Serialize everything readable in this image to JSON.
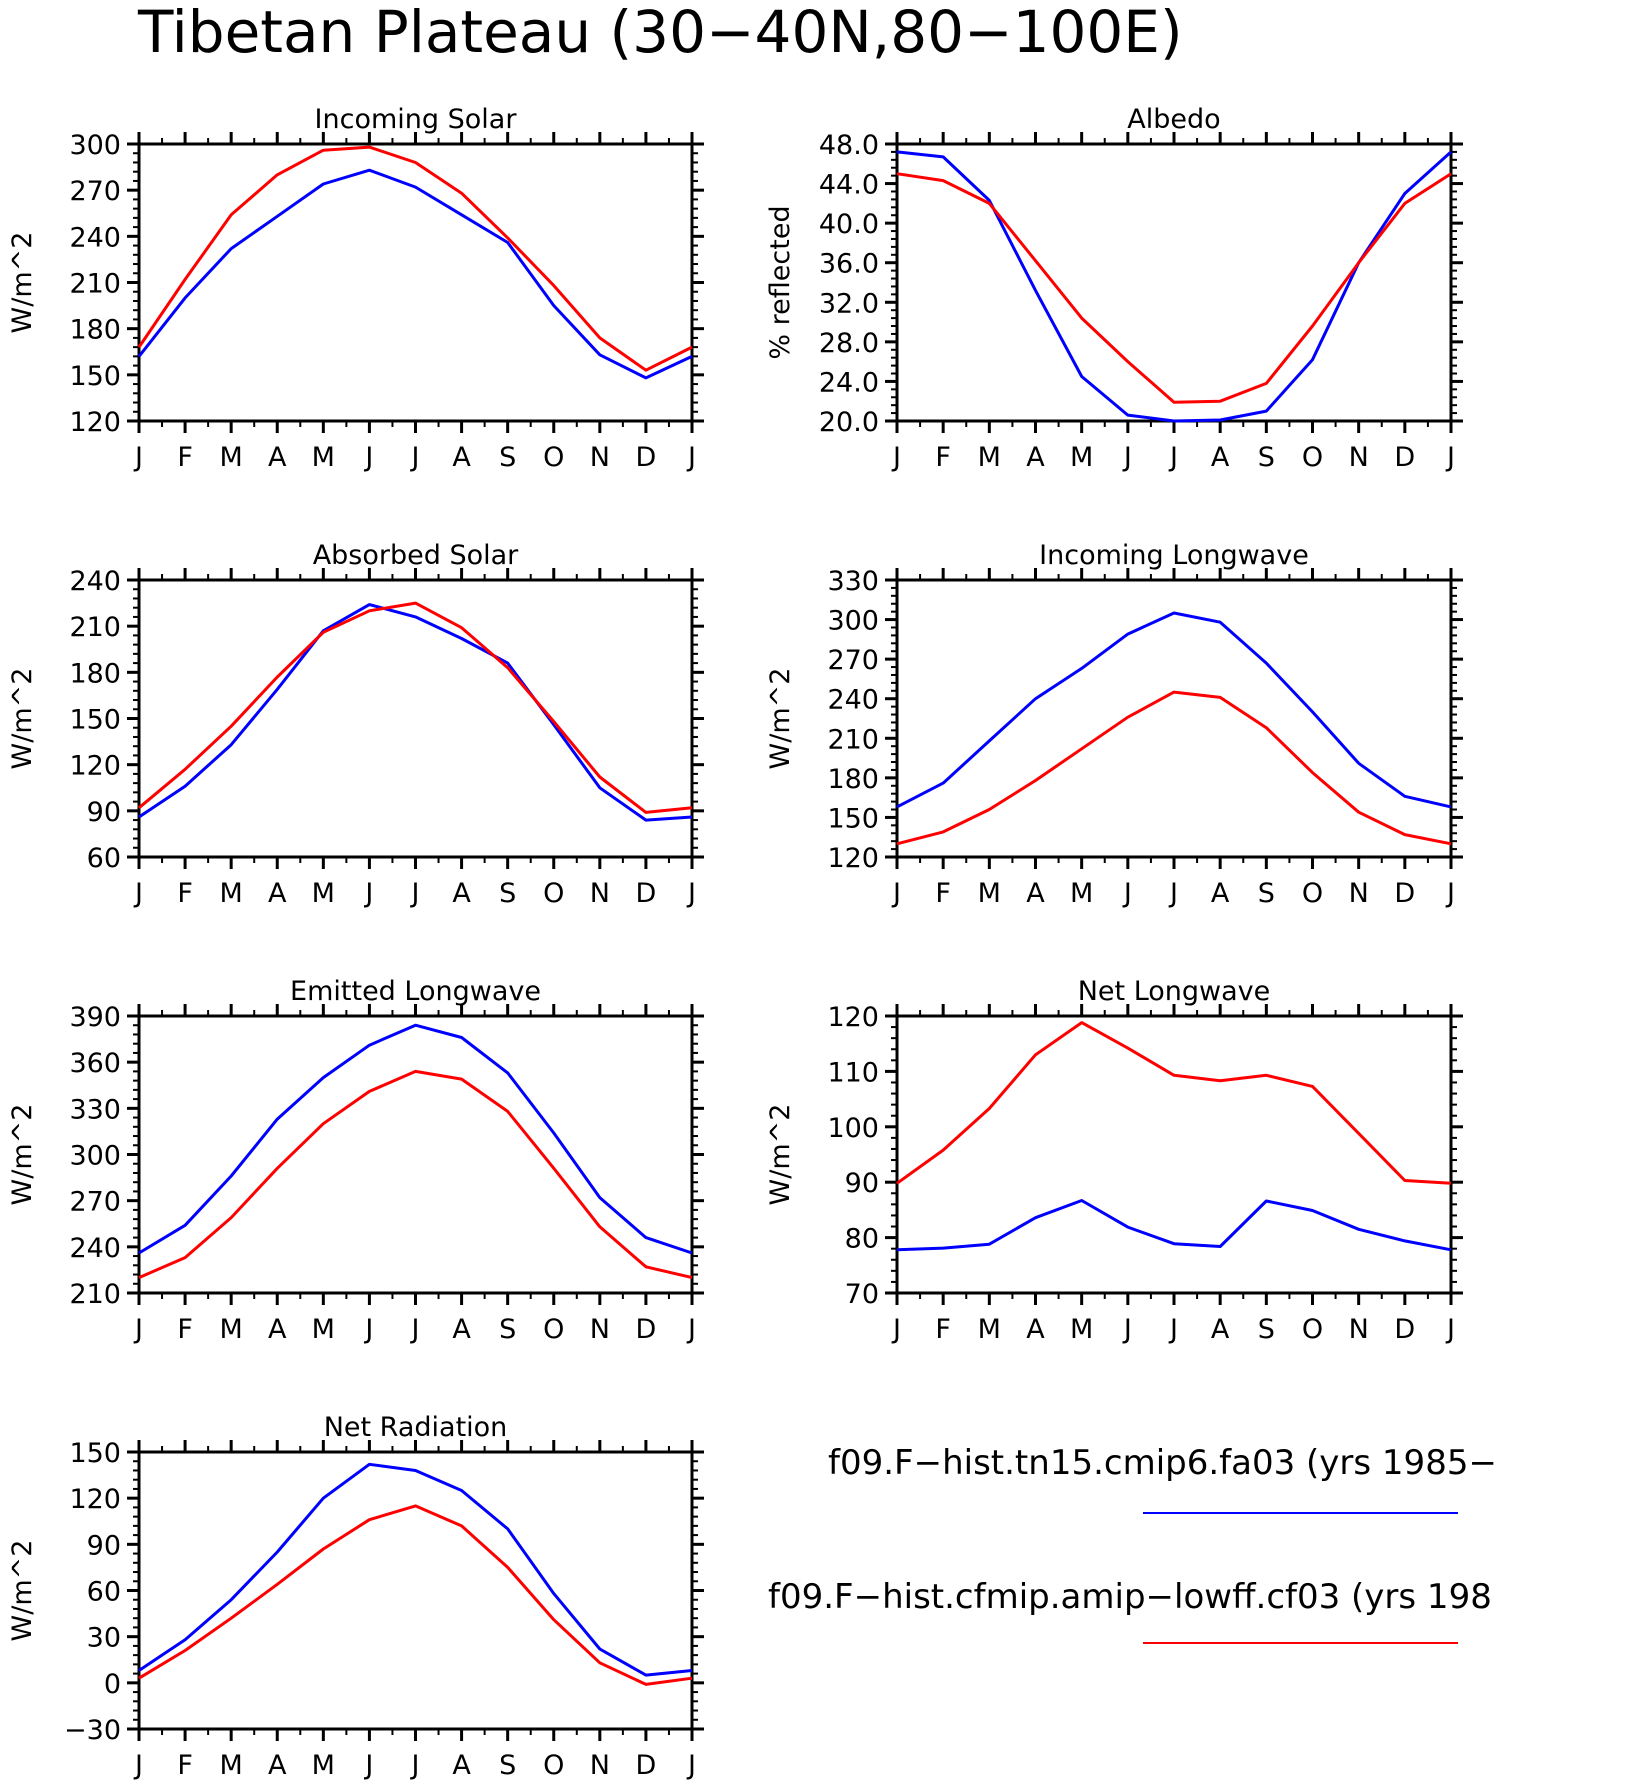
{
  "title": "Tibetan Plateau (30−40N,80−100E)",
  "legend": [
    {
      "label": "f09.F−hist.tn15.cmip6.fa03 (yrs 1985−",
      "color": "#0000ff"
    },
    {
      "label": "f09.F−hist.cfmip.amip−lowff.cf03 (yrs 198",
      "color": "#ff0000"
    }
  ],
  "colors": {
    "series_a": "#0000ff",
    "series_b": "#ff0000"
  },
  "chart_data": [
    {
      "type": "line",
      "title": "Incoming Solar",
      "ylabel": "W/m^2",
      "ylim": [
        120,
        300
      ],
      "yticks": [
        "120",
        "150",
        "180",
        "210",
        "240",
        "270",
        "300"
      ],
      "categories": [
        "J",
        "F",
        "M",
        "A",
        "M",
        "J",
        "J",
        "A",
        "S",
        "O",
        "N",
        "D",
        "J"
      ],
      "series": [
        {
          "color": "#0000ff",
          "values": [
            162,
            200,
            232,
            253,
            274,
            283,
            272,
            254,
            236,
            195,
            163,
            148,
            162
          ]
        },
        {
          "color": "#ff0000",
          "values": [
            168,
            212,
            254,
            280,
            296,
            298,
            288,
            268,
            239,
            208,
            174,
            153,
            168
          ]
        }
      ]
    },
    {
      "type": "line",
      "title": "Albedo",
      "ylabel": "% reflected",
      "ylim": [
        20,
        48
      ],
      "yticks": [
        "20.0",
        "24.0",
        "28.0",
        "32.0",
        "36.0",
        "40.0",
        "44.0",
        "48.0"
      ],
      "categories": [
        "J",
        "F",
        "M",
        "A",
        "M",
        "J",
        "J",
        "A",
        "S",
        "O",
        "N",
        "D",
        "J"
      ],
      "series": [
        {
          "color": "#0000ff",
          "values": [
            47.2,
            46.7,
            42.3,
            33.2,
            24.5,
            20.6,
            20.0,
            20.1,
            21.0,
            26.2,
            36.0,
            43.0,
            47.2
          ]
        },
        {
          "color": "#ff0000",
          "values": [
            45.0,
            44.3,
            42.0,
            36.2,
            30.4,
            26.0,
            21.9,
            22.0,
            23.8,
            29.6,
            36.0,
            42.0,
            45.0
          ]
        }
      ]
    },
    {
      "type": "line",
      "title": "Absorbed Solar",
      "ylabel": "W/m^2",
      "ylim": [
        60,
        240
      ],
      "yticks": [
        "60",
        "90",
        "120",
        "150",
        "180",
        "210",
        "240"
      ],
      "categories": [
        "J",
        "F",
        "M",
        "A",
        "M",
        "J",
        "J",
        "A",
        "S",
        "O",
        "N",
        "D",
        "J"
      ],
      "series": [
        {
          "color": "#0000ff",
          "values": [
            86,
            106,
            133,
            169,
            207,
            224,
            216,
            202,
            186,
            146,
            105,
            84,
            86
          ]
        },
        {
          "color": "#ff0000",
          "values": [
            92,
            117,
            145,
            177,
            206,
            220,
            225,
            209,
            183,
            148,
            112,
            89,
            92
          ]
        }
      ]
    },
    {
      "type": "line",
      "title": "Incoming Longwave",
      "ylabel": "W/m^2",
      "ylim": [
        120,
        330
      ],
      "yticks": [
        "120",
        "150",
        "180",
        "210",
        "240",
        "270",
        "300",
        "330"
      ],
      "categories": [
        "J",
        "F",
        "M",
        "A",
        "M",
        "J",
        "J",
        "A",
        "S",
        "O",
        "N",
        "D",
        "J"
      ],
      "series": [
        {
          "color": "#0000ff",
          "values": [
            158,
            176,
            208,
            240,
            263,
            289,
            305,
            298,
            267,
            230,
            191,
            166,
            158
          ]
        },
        {
          "color": "#ff0000",
          "values": [
            130,
            139,
            156,
            178,
            202,
            226,
            245,
            241,
            218,
            184,
            154,
            137,
            130
          ]
        }
      ]
    },
    {
      "type": "line",
      "title": "Emitted Longwave",
      "ylabel": "W/m^2",
      "ylim": [
        210,
        390
      ],
      "yticks": [
        "210",
        "240",
        "270",
        "300",
        "330",
        "360",
        "390"
      ],
      "categories": [
        "J",
        "F",
        "M",
        "A",
        "M",
        "J",
        "J",
        "A",
        "S",
        "O",
        "N",
        "D",
        "J"
      ],
      "series": [
        {
          "color": "#0000ff",
          "values": [
            236,
            254,
            286,
            323,
            350,
            371,
            384,
            376,
            353,
            314,
            272,
            246,
            236
          ]
        },
        {
          "color": "#ff0000",
          "values": [
            220,
            233,
            259,
            291,
            320,
            341,
            354,
            349,
            328,
            291,
            253,
            227,
            220
          ]
        }
      ]
    },
    {
      "type": "line",
      "title": "Net Longwave",
      "ylabel": "W/m^2",
      "ylim": [
        70,
        120
      ],
      "yticks": [
        "70",
        "80",
        "90",
        "100",
        "110",
        "120"
      ],
      "categories": [
        "J",
        "F",
        "M",
        "A",
        "M",
        "J",
        "J",
        "A",
        "S",
        "O",
        "N",
        "D",
        "J"
      ],
      "series": [
        {
          "color": "#0000ff",
          "values": [
            77.8,
            78.1,
            78.8,
            83.6,
            86.7,
            81.9,
            78.9,
            78.4,
            86.6,
            84.9,
            81.5,
            79.4,
            77.8
          ]
        },
        {
          "color": "#ff0000",
          "values": [
            89.8,
            95.8,
            103.3,
            113.0,
            118.8,
            114.2,
            109.3,
            108.3,
            109.3,
            107.3,
            98.8,
            90.3,
            89.8
          ]
        }
      ]
    },
    {
      "type": "line",
      "title": "Net Radiation",
      "ylabel": "W/m^2",
      "ylim": [
        -30,
        150
      ],
      "yticks": [
        "−30",
        "0",
        "30",
        "60",
        "90",
        "120",
        "150"
      ],
      "categories": [
        "J",
        "F",
        "M",
        "A",
        "M",
        "J",
        "J",
        "A",
        "S",
        "O",
        "N",
        "D",
        "J"
      ],
      "series": [
        {
          "color": "#0000ff",
          "values": [
            8,
            28,
            54,
            85,
            120,
            142,
            138,
            125,
            100,
            58,
            22,
            5,
            8
          ]
        },
        {
          "color": "#ff0000",
          "values": [
            3,
            21,
            42,
            64,
            87,
            106,
            115,
            102,
            75,
            41,
            13,
            -1,
            3
          ]
        }
      ]
    }
  ]
}
